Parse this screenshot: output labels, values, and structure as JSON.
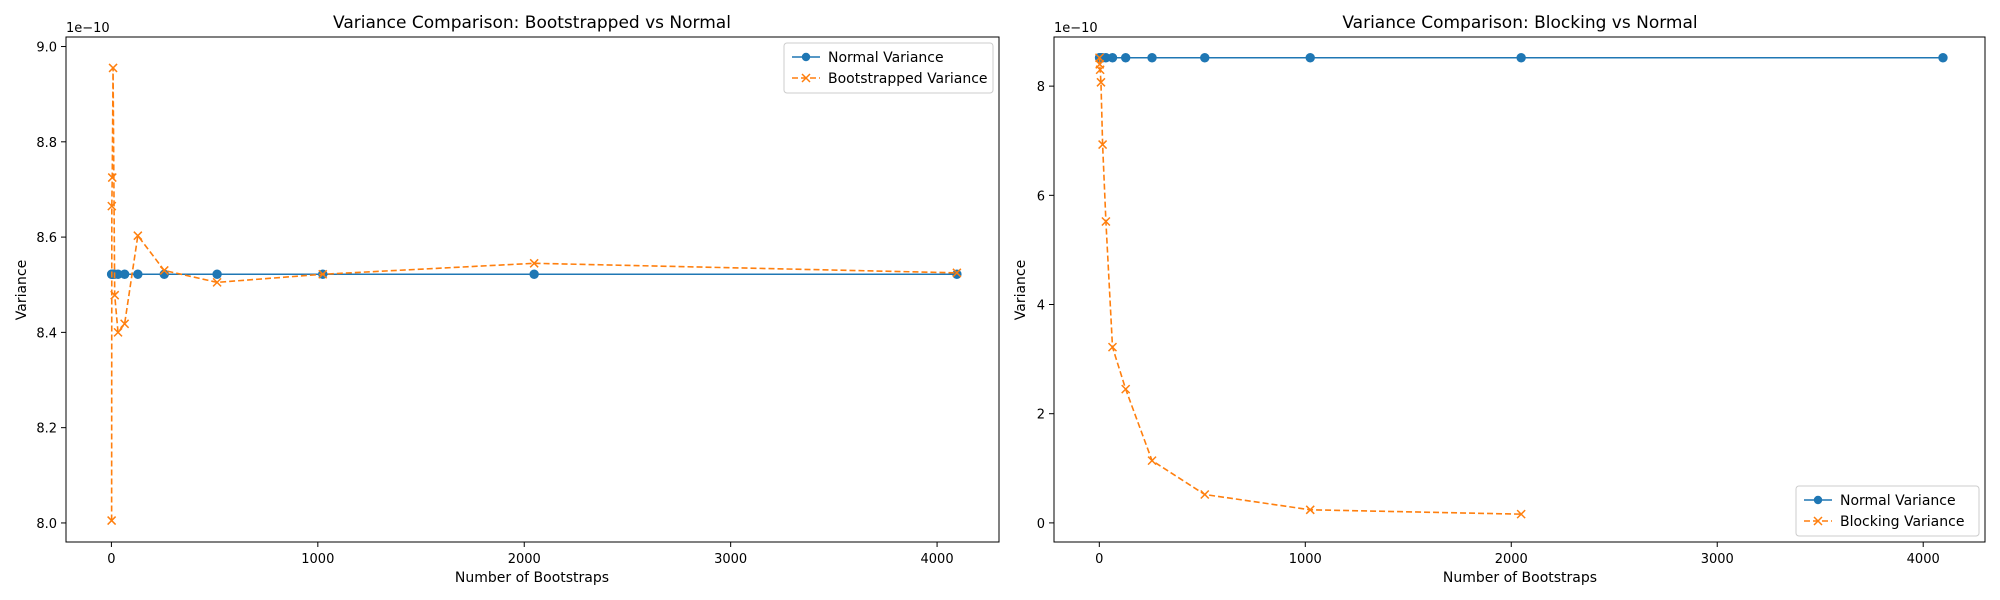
{
  "chart_data": [
    {
      "type": "line",
      "title": "Variance Comparison: Bootstrapped vs Normal",
      "xlabel": "Number of Bootstraps",
      "ylabel": "Variance",
      "offset_text": "1e−10",
      "xlim": [
        -220,
        4300
      ],
      "ylim": [
        7.96,
        9.02
      ],
      "xticks": [
        0,
        1000,
        2000,
        3000,
        4000
      ],
      "yticks": [
        8.0,
        8.2,
        8.4,
        8.6,
        8.8,
        9.0
      ],
      "ytick_labels": [
        "8.0",
        "8.2",
        "8.4",
        "8.6",
        "8.8",
        "9.0"
      ],
      "legend_position": "upper right",
      "series": [
        {
          "name": "Normal Variance",
          "color": "#1f77b4",
          "style": "solid",
          "marker": "circle",
          "x": [
            1,
            2,
            4,
            8,
            16,
            32,
            64,
            128,
            256,
            512,
            1024,
            2048,
            4096
          ],
          "y": [
            8.522,
            8.522,
            8.522,
            8.522,
            8.522,
            8.522,
            8.522,
            8.522,
            8.522,
            8.522,
            8.522,
            8.522,
            8.522
          ]
        },
        {
          "name": "Bootstrapped Variance",
          "color": "#ff7f0e",
          "style": "dashed",
          "marker": "x",
          "x": [
            1,
            2,
            4,
            8,
            16,
            32,
            64,
            128,
            256,
            512,
            1024,
            2048,
            4096
          ],
          "y": [
            8.005,
            8.665,
            8.725,
            8.955,
            8.478,
            8.4,
            8.418,
            8.603,
            8.53,
            8.505,
            8.522,
            8.545,
            8.525
          ]
        }
      ]
    },
    {
      "type": "line",
      "title": "Variance Comparison: Blocking vs Normal",
      "xlabel": "Number of Bootstraps",
      "ylabel": "Variance",
      "offset_text": "1e−10",
      "xlim": [
        -220,
        4300
      ],
      "ylim": [
        -0.35,
        8.9
      ],
      "xticks": [
        0,
        1000,
        2000,
        3000,
        4000
      ],
      "yticks": [
        0,
        2,
        4,
        6,
        8
      ],
      "ytick_labels": [
        "0",
        "2",
        "4",
        "6",
        "8"
      ],
      "legend_position": "lower right",
      "series": [
        {
          "name": "Normal Variance",
          "color": "#1f77b4",
          "style": "solid",
          "marker": "circle",
          "x": [
            1,
            2,
            4,
            8,
            16,
            32,
            64,
            128,
            256,
            512,
            1024,
            2048,
            4096
          ],
          "y": [
            8.52,
            8.52,
            8.52,
            8.52,
            8.52,
            8.52,
            8.52,
            8.52,
            8.52,
            8.52,
            8.52,
            8.52,
            8.52
          ]
        },
        {
          "name": "Blocking Variance",
          "color": "#ff7f0e",
          "style": "dashed",
          "marker": "x",
          "x": [
            1,
            2,
            4,
            8,
            16,
            32,
            64,
            128,
            256,
            512,
            1024,
            2048
          ],
          "y": [
            8.52,
            8.4,
            8.3,
            8.07,
            6.93,
            5.52,
            3.22,
            2.45,
            1.14,
            0.52,
            0.24,
            0.16
          ]
        }
      ]
    }
  ]
}
